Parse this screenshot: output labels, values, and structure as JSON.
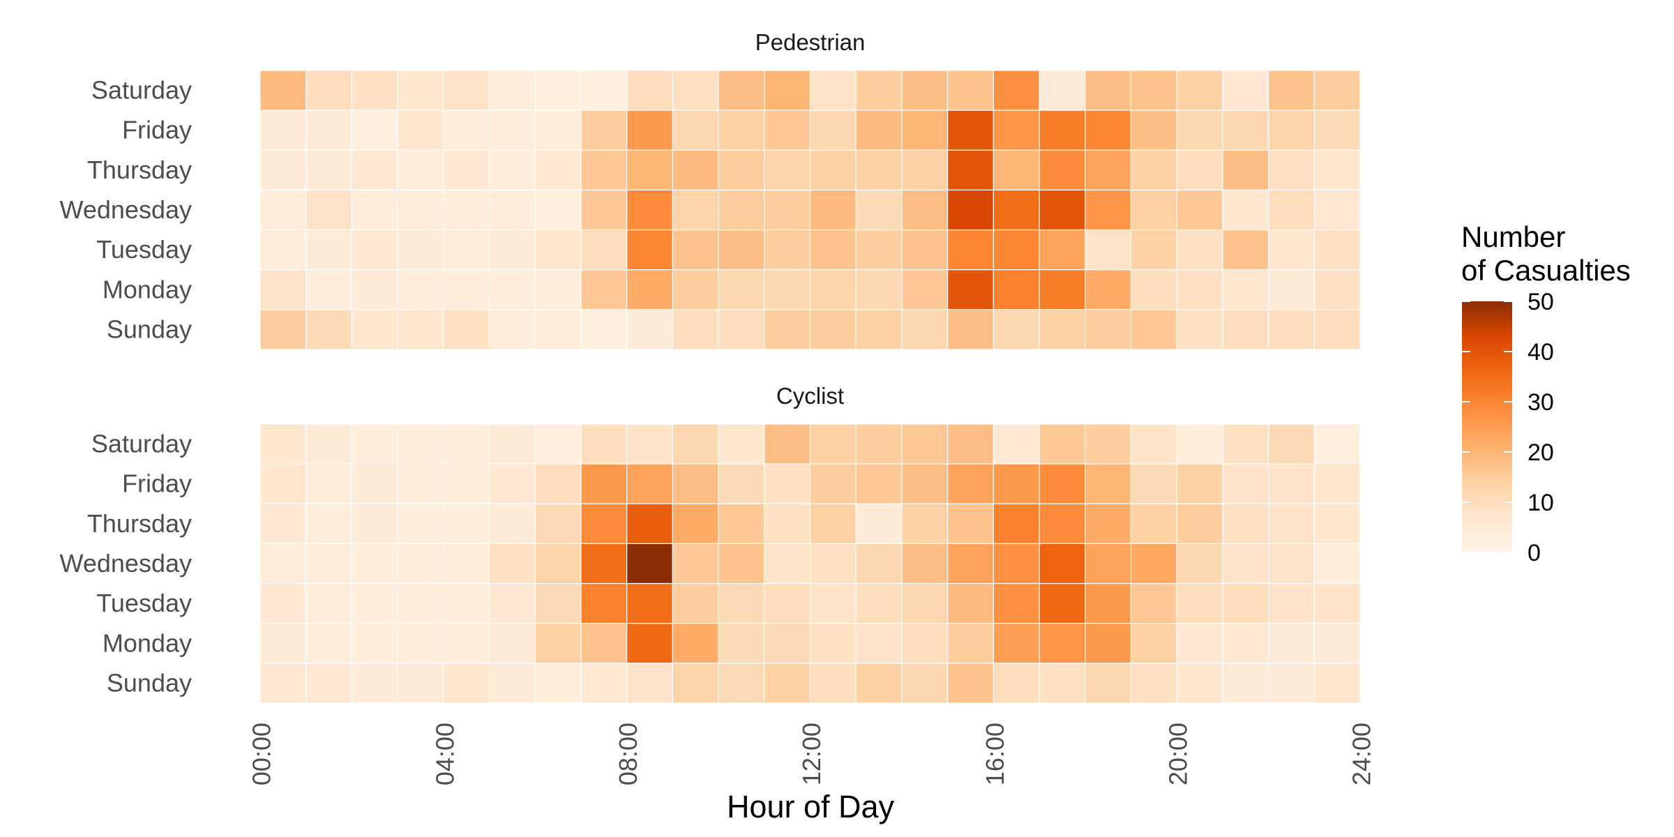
{
  "chart_data": {
    "type": "heatmap",
    "xlabel": "Hour of Day",
    "x_tick_labels": [
      "00:00",
      "04:00",
      "08:00",
      "12:00",
      "16:00",
      "20:00",
      "24:00"
    ],
    "x_tick_hours": [
      0,
      4,
      8,
      12,
      16,
      20,
      24
    ],
    "hours": [
      0,
      1,
      2,
      3,
      4,
      5,
      6,
      7,
      8,
      9,
      10,
      11,
      12,
      13,
      14,
      15,
      16,
      17,
      18,
      19,
      20,
      21,
      22,
      23
    ],
    "days_top_to_bottom": [
      "Saturday",
      "Friday",
      "Thursday",
      "Wednesday",
      "Tuesday",
      "Monday",
      "Sunday"
    ],
    "legend": {
      "title_lines": [
        "Number",
        "of Casualties"
      ],
      "ticks": [
        0,
        10,
        20,
        30,
        40,
        50
      ],
      "min": 0,
      "max": 50,
      "colors": [
        "#fff5eb",
        "#fee6ce",
        "#fdd0a2",
        "#fdae6b",
        "#fd8d3c",
        "#f16913",
        "#d94801",
        "#8c2d04"
      ]
    },
    "facets": [
      {
        "title": "Pedestrian",
        "values": [
          [
            19,
            10,
            9,
            7,
            8,
            4,
            3,
            3,
            10,
            9,
            18,
            20,
            8,
            15,
            18,
            17,
            28,
            5,
            18,
            17,
            14,
            6,
            17,
            15
          ],
          [
            5,
            5,
            3,
            7,
            4,
            4,
            4,
            15,
            26,
            12,
            14,
            16,
            12,
            19,
            20,
            40,
            27,
            32,
            30,
            18,
            12,
            12,
            13,
            11
          ],
          [
            5,
            5,
            6,
            4,
            6,
            4,
            6,
            16,
            20,
            19,
            15,
            13,
            14,
            14,
            14,
            40,
            20,
            29,
            24,
            14,
            10,
            18,
            9,
            7
          ],
          [
            4,
            8,
            4,
            4,
            4,
            4,
            3,
            16,
            29,
            13,
            15,
            15,
            19,
            11,
            18,
            43,
            35,
            40,
            27,
            14,
            16,
            7,
            10,
            6
          ],
          [
            4,
            5,
            6,
            5,
            4,
            5,
            7,
            10,
            30,
            17,
            18,
            15,
            17,
            15,
            17,
            30,
            30,
            24,
            8,
            14,
            9,
            17,
            7,
            9
          ],
          [
            8,
            4,
            5,
            4,
            4,
            4,
            4,
            16,
            22,
            15,
            12,
            12,
            13,
            12,
            16,
            40,
            31,
            32,
            22,
            10,
            9,
            7,
            5,
            9
          ],
          [
            15,
            11,
            7,
            7,
            9,
            4,
            4,
            3,
            5,
            10,
            10,
            15,
            15,
            14,
            12,
            18,
            12,
            14,
            15,
            16,
            9,
            10,
            10,
            10
          ]
        ]
      },
      {
        "title": "Cyclist",
        "values": [
          [
            7,
            5,
            4,
            4,
            4,
            5,
            3,
            10,
            8,
            12,
            7,
            18,
            14,
            15,
            16,
            18,
            6,
            16,
            15,
            8,
            4,
            9,
            11,
            3
          ],
          [
            7,
            4,
            5,
            4,
            4,
            6,
            10,
            26,
            24,
            18,
            11,
            9,
            15,
            16,
            18,
            24,
            26,
            29,
            20,
            11,
            14,
            8,
            8,
            7
          ],
          [
            6,
            4,
            5,
            4,
            4,
            5,
            11,
            29,
            38,
            22,
            16,
            9,
            14,
            5,
            14,
            17,
            31,
            29,
            22,
            14,
            15,
            9,
            8,
            7
          ],
          [
            4,
            4,
            4,
            4,
            4,
            9,
            13,
            35,
            50,
            16,
            17,
            8,
            9,
            12,
            18,
            24,
            28,
            37,
            24,
            23,
            12,
            8,
            8,
            4
          ],
          [
            6,
            4,
            4,
            4,
            4,
            6,
            11,
            31,
            35,
            15,
            11,
            10,
            8,
            10,
            12,
            19,
            28,
            36,
            26,
            16,
            10,
            10,
            8,
            8
          ],
          [
            5,
            4,
            4,
            4,
            4,
            5,
            14,
            17,
            36,
            22,
            11,
            11,
            9,
            8,
            10,
            15,
            25,
            27,
            26,
            14,
            6,
            6,
            5,
            5
          ],
          [
            6,
            6,
            5,
            5,
            7,
            5,
            4,
            6,
            8,
            13,
            11,
            14,
            10,
            14,
            12,
            17,
            10,
            9,
            12,
            9,
            7,
            5,
            5,
            7
          ]
        ]
      }
    ]
  }
}
